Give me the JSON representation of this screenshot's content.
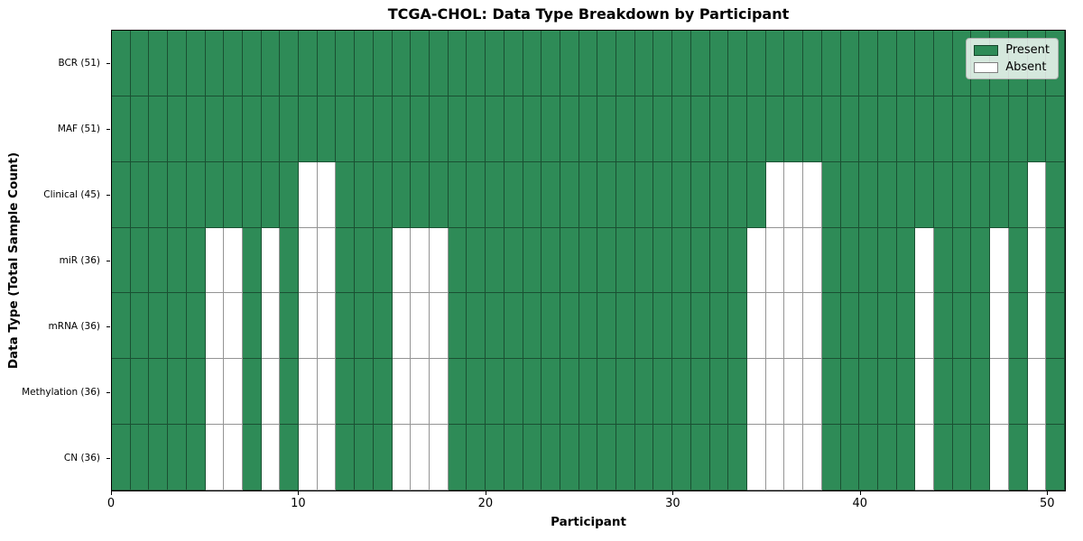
{
  "chart_data": {
    "type": "heatmap",
    "title": "TCGA-CHOL: Data Type Breakdown by Participant",
    "xlabel": "Participant",
    "ylabel": "Data Type (Total Sample Count)",
    "x_ticks": [
      0,
      10,
      20,
      30,
      40,
      50
    ],
    "xlim": [
      0,
      51
    ],
    "n_participants": 51,
    "legend_position": "upper right",
    "colors": {
      "present": "#2e8b57",
      "absent": "#ffffff"
    },
    "legend": [
      {
        "label": "Present",
        "color": "#2e8b57"
      },
      {
        "label": "Absent",
        "color": "#ffffff"
      }
    ],
    "rows": [
      {
        "label": "BCR (51)",
        "present_count": 51,
        "absent_participants": []
      },
      {
        "label": "MAF (51)",
        "present_count": 51,
        "absent_participants": []
      },
      {
        "label": "Clinical (45)",
        "present_count": 45,
        "absent_participants": [
          10,
          11,
          35,
          36,
          37,
          49
        ]
      },
      {
        "label": "miR (36)",
        "present_count": 36,
        "absent_participants": [
          5,
          6,
          8,
          10,
          11,
          15,
          16,
          17,
          34,
          35,
          36,
          37,
          43,
          47,
          49
        ]
      },
      {
        "label": "mRNA (36)",
        "present_count": 36,
        "absent_participants": [
          5,
          6,
          8,
          10,
          11,
          15,
          16,
          17,
          34,
          35,
          36,
          37,
          43,
          47,
          49
        ]
      },
      {
        "label": "Methylation (36)",
        "present_count": 36,
        "absent_participants": [
          5,
          6,
          8,
          10,
          11,
          15,
          16,
          17,
          34,
          35,
          36,
          37,
          43,
          47,
          49
        ]
      },
      {
        "label": "CN (36)",
        "present_count": 36,
        "absent_participants": [
          5,
          6,
          8,
          10,
          11,
          15,
          16,
          17,
          34,
          35,
          36,
          37,
          43,
          47,
          49
        ]
      }
    ]
  }
}
